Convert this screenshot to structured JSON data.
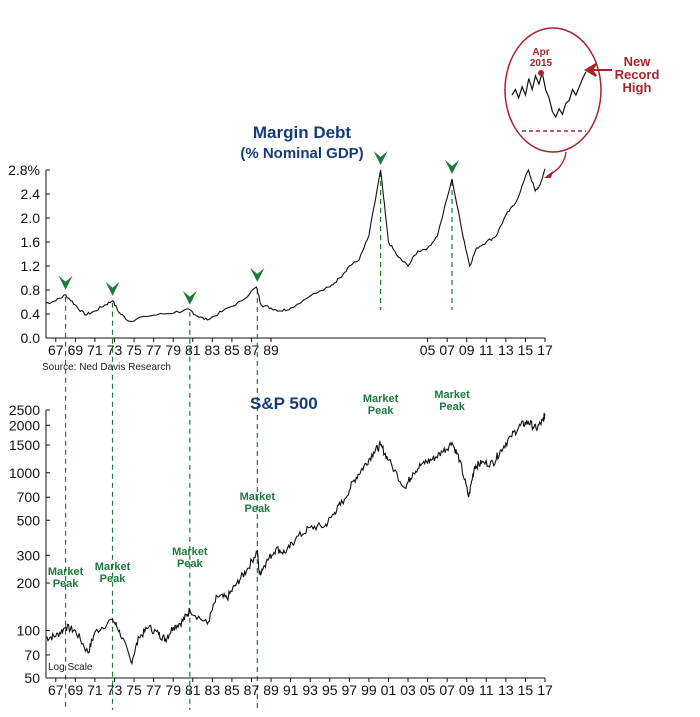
{
  "chart_data": [
    {
      "type": "line",
      "title": "Margin Debt",
      "subtitle": "(% Nominal GDP)",
      "source": "Source: Ned Davis Research",
      "ylim": [
        0.0,
        2.8
      ],
      "y_ticks": [
        "0.0",
        "0.4",
        "0.8",
        "1.2",
        "1.6",
        "2.0",
        "2.4",
        "2.8%"
      ],
      "x_range": [
        1966,
        2017
      ],
      "x_ticks": [
        "67",
        "69",
        "71",
        "73",
        "75",
        "77",
        "79",
        "81",
        "83",
        "85",
        "87",
        "89",
        "05",
        "07",
        "09",
        "11",
        "13",
        "15",
        "17"
      ],
      "peak_markers": [
        1968.0,
        1972.8,
        1980.7,
        1987.6,
        2000.2,
        2007.5
      ],
      "series": [
        {
          "x": [
            1966.0,
            1967.0,
            1968.0,
            1969.0,
            1970.0,
            1971.0,
            1972.0,
            1972.8,
            1973.5,
            1974.5,
            1976.0,
            1978.0,
            1980.0,
            1980.7,
            1981.5,
            1982.5,
            1984.0,
            1986.0,
            1987.5,
            1988.0,
            1989.0,
            1990.0,
            1991.0,
            1993.0,
            1995.0,
            1996.0,
            1997.0,
            1998.0,
            1999.0,
            2000.2,
            2001.0,
            2002.0,
            2003.0,
            2004.0,
            2005.0,
            2006.0,
            2007.5,
            2008.5,
            2009.3,
            2010.0,
            2011.0,
            2012.0,
            2013.0,
            2014.0,
            2015.3,
            2016.0,
            2016.5,
            2017.0
          ],
          "y": [
            0.58,
            0.62,
            0.72,
            0.55,
            0.38,
            0.45,
            0.55,
            0.62,
            0.42,
            0.28,
            0.36,
            0.4,
            0.45,
            0.47,
            0.36,
            0.3,
            0.44,
            0.62,
            0.85,
            0.55,
            0.5,
            0.45,
            0.5,
            0.7,
            0.85,
            1.0,
            1.2,
            1.3,
            1.7,
            2.8,
            1.6,
            1.35,
            1.2,
            1.45,
            1.5,
            1.7,
            2.65,
            1.8,
            1.2,
            1.5,
            1.6,
            1.7,
            2.05,
            2.25,
            2.8,
            2.45,
            2.55,
            2.82
          ]
        }
      ],
      "inset": {
        "label": "Apr 2015",
        "callout": [
          "New",
          "Record",
          "High"
        ]
      }
    },
    {
      "type": "line",
      "title": "S&P 500",
      "y_scale": "log",
      "scale_note": "Log Scale",
      "ylim": [
        50,
        2500
      ],
      "y_ticks": [
        "50",
        "70",
        "100",
        "200",
        "300",
        "500",
        "700",
        "1000",
        "1500",
        "2000",
        "2500"
      ],
      "x_range": [
        1966,
        2017
      ],
      "x_ticks": [
        "67",
        "69",
        "71",
        "73",
        "75",
        "77",
        "79",
        "81",
        "83",
        "85",
        "87",
        "89",
        "91",
        "93",
        "95",
        "97",
        "99",
        "01",
        "03",
        "05",
        "07",
        "09",
        "11",
        "13",
        "15",
        "17"
      ],
      "peak_labels": [
        {
          "x": 1968.0,
          "text": [
            "Market",
            "Peak"
          ]
        },
        {
          "x": 1972.8,
          "text": [
            "Market",
            "Peak"
          ]
        },
        {
          "x": 1980.7,
          "text": [
            "Market",
            "Peak"
          ]
        },
        {
          "x": 1987.6,
          "text": [
            "Market",
            "Peak"
          ]
        },
        {
          "x": 2000.2,
          "text": [
            "Market",
            "Peak"
          ]
        },
        {
          "x": 2007.5,
          "text": [
            "Market",
            "Peak"
          ]
        }
      ],
      "series": [
        {
          "x": [
            1966.0,
            1967.0,
            1968.0,
            1969.0,
            1970.3,
            1971.0,
            1972.8,
            1973.5,
            1974.7,
            1975.5,
            1976.5,
            1977.5,
            1978.2,
            1979.0,
            1980.0,
            1980.7,
            1982.5,
            1983.5,
            1984.5,
            1985.5,
            1986.5,
            1987.6,
            1987.8,
            1988.5,
            1989.5,
            1990.5,
            1991.5,
            1993.0,
            1994.5,
            1995.5,
            1996.5,
            1997.5,
            1998.5,
            1999.5,
            2000.2,
            2001.0,
            2002.7,
            2003.5,
            2004.5,
            2005.5,
            2006.5,
            2007.5,
            2008.3,
            2009.2,
            2009.8,
            2010.5,
            2011.7,
            2012.5,
            2013.5,
            2014.5,
            2015.3,
            2016.1,
            2016.8,
            2017.0
          ],
          "y": [
            90,
            92,
            105,
            100,
            72,
            98,
            118,
            100,
            63,
            90,
            105,
            95,
            88,
            105,
            115,
            135,
            110,
            165,
            160,
            200,
            240,
            320,
            230,
            270,
            330,
            310,
            380,
            450,
            460,
            560,
            680,
            900,
            1100,
            1350,
            1500,
            1200,
            800,
            1000,
            1150,
            1220,
            1350,
            1550,
            1200,
            700,
            1100,
            1150,
            1150,
            1400,
            1700,
            2000,
            2100,
            1900,
            2150,
            2350
          ]
        }
      ]
    }
  ]
}
